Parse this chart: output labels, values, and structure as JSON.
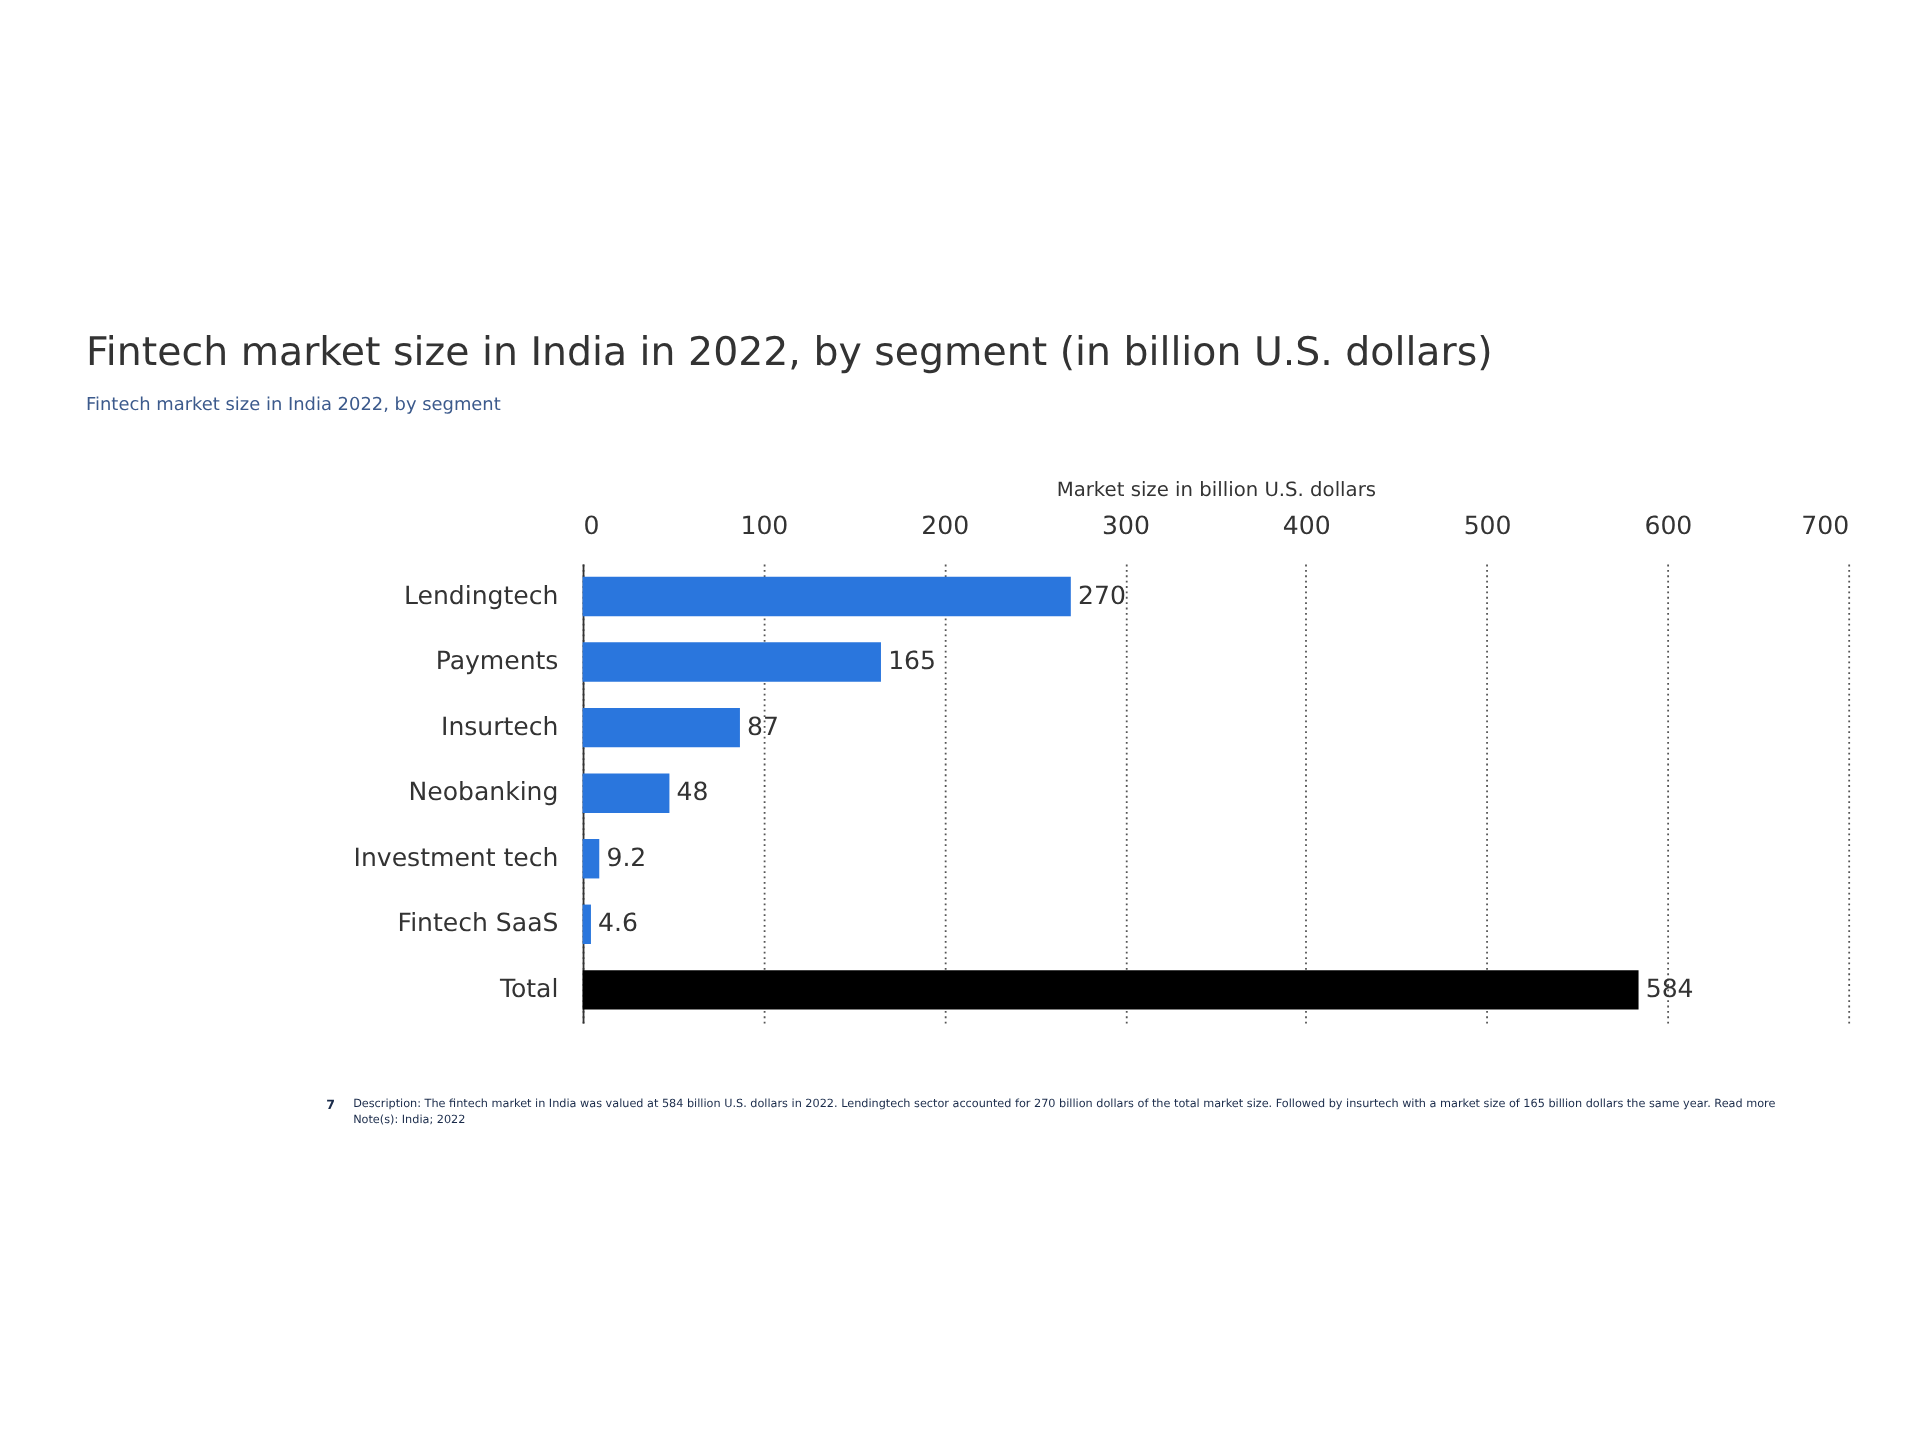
{
  "chart_data": {
    "type": "bar",
    "orientation": "horizontal",
    "title": "Fintech market size in India in 2022, by segment (in billion U.S. dollars)",
    "subtitle": "Fintech market size in India 2022, by segment",
    "xlabel": "Market size in billion U.S. dollars",
    "categories": [
      "Lendingtech",
      "Payments",
      "Insurtech",
      "Neobanking",
      "Investment tech",
      "Fintech SaaS",
      "Total"
    ],
    "values": [
      270,
      165,
      87,
      48,
      9.2,
      4.6,
      584
    ],
    "colors": [
      "#2a76dd",
      "#2a76dd",
      "#2a76dd",
      "#2a76dd",
      "#2a76dd",
      "#2a76dd",
      "#000000"
    ],
    "data_labels": true,
    "xlim": [
      0,
      700
    ],
    "xticks": [
      0,
      100,
      200,
      300,
      400,
      500,
      600,
      700
    ],
    "grid": "x",
    "annotations": [
      "7",
      "Description: The fintech market in India was valued at 584 billion U.S. dollars in 2022. Lendingtech sector accounted for 270 billion dollars of the total market size. Followed by insurtech with a market size of 165 billion dollars the same year. Read more",
      "Note(s): India; 2022"
    ]
  }
}
